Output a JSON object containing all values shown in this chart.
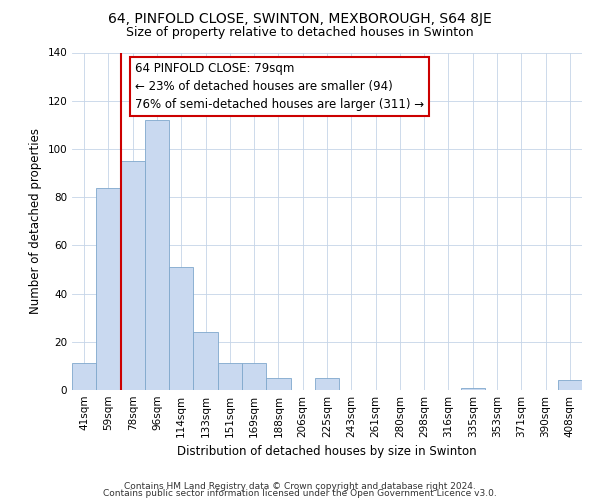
{
  "title": "64, PINFOLD CLOSE, SWINTON, MEXBOROUGH, S64 8JE",
  "subtitle": "Size of property relative to detached houses in Swinton",
  "xlabel": "Distribution of detached houses by size in Swinton",
  "ylabel": "Number of detached properties",
  "bar_labels": [
    "41sqm",
    "59sqm",
    "78sqm",
    "96sqm",
    "114sqm",
    "133sqm",
    "151sqm",
    "169sqm",
    "188sqm",
    "206sqm",
    "225sqm",
    "243sqm",
    "261sqm",
    "280sqm",
    "298sqm",
    "316sqm",
    "335sqm",
    "353sqm",
    "371sqm",
    "390sqm",
    "408sqm"
  ],
  "bar_values": [
    11,
    84,
    95,
    112,
    51,
    24,
    11,
    11,
    5,
    0,
    5,
    0,
    0,
    0,
    0,
    0,
    1,
    0,
    0,
    0,
    4
  ],
  "bar_color": "#c9d9f0",
  "bar_edge_color": "#7fa8cc",
  "vline_color": "#cc0000",
  "annotation_text": "64 PINFOLD CLOSE: 79sqm\n← 23% of detached houses are smaller (94)\n76% of semi-detached houses are larger (311) →",
  "annotation_box_color": "#ffffff",
  "annotation_box_edge": "#cc0000",
  "ylim": [
    0,
    140
  ],
  "yticks": [
    0,
    20,
    40,
    60,
    80,
    100,
    120,
    140
  ],
  "footer_line1": "Contains HM Land Registry data © Crown copyright and database right 2024.",
  "footer_line2": "Contains public sector information licensed under the Open Government Licence v3.0.",
  "title_fontsize": 10,
  "subtitle_fontsize": 9,
  "axis_label_fontsize": 8.5,
  "tick_fontsize": 7.5,
  "annotation_fontsize": 8.5,
  "footer_fontsize": 6.5
}
